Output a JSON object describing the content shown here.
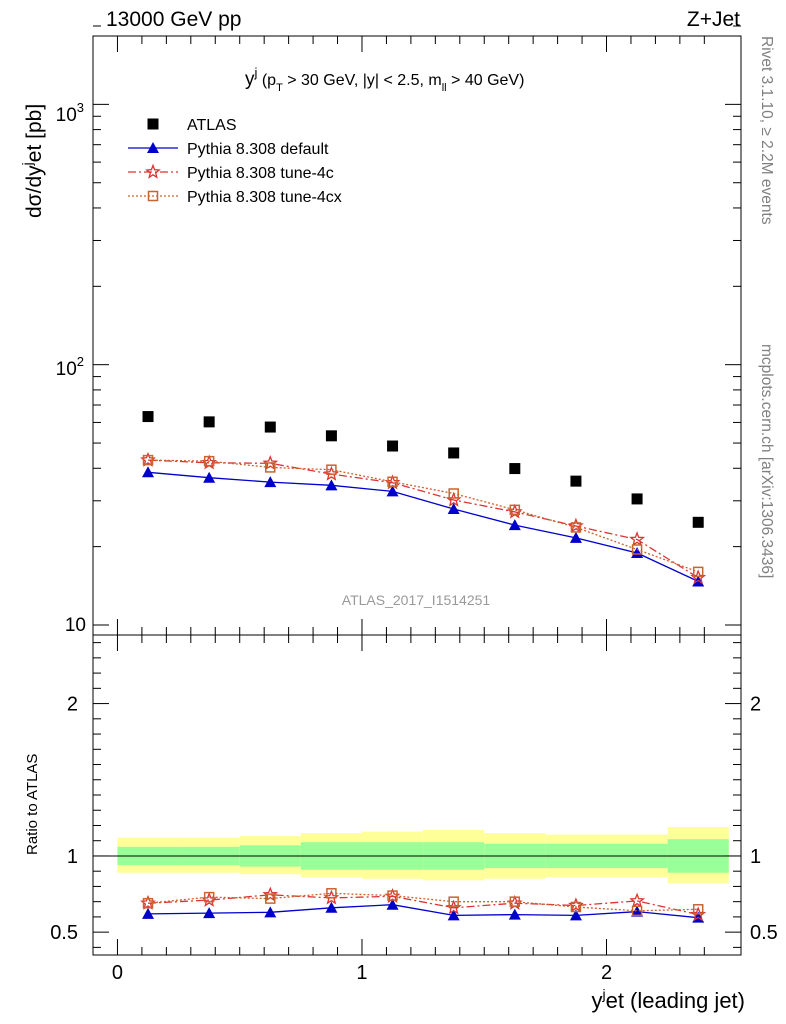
{
  "header": {
    "energy_label": "13000 GeV pp",
    "process_label": "Z+Jet"
  },
  "side_labels": {
    "rivet": "Rivet 3.1.10, ≥ 2.2M events",
    "mcplots": "mcplots.cern.ch [arXiv:1306.3436]"
  },
  "watermark": "ATLAS_2017_I1514251",
  "main_title": "y^j (p_T > 30 GeV, |y| < 2.5, m_ll > 40 GeV)",
  "colors": {
    "atlas": "#000000",
    "default": "#0000cc",
    "tune4c": "#dd3333",
    "tune4cx": "#c8642d",
    "band_inner": "#99ff99",
    "band_outer": "#ffff99"
  },
  "chart_data": [
    {
      "type": "scatter",
      "panel": "main",
      "ylabel": "dσ/dy^jet [pb]",
      "yscale": "log",
      "ylim": [
        10,
        2000
      ],
      "xlim": [
        -0.1,
        2.55
      ],
      "ytick_labels": [
        "10",
        "10²",
        "10³"
      ],
      "legend_position": "top-left",
      "x": [
        0.125,
        0.375,
        0.625,
        0.875,
        1.125,
        1.375,
        1.625,
        1.875,
        2.125,
        2.375
      ],
      "series": [
        {
          "name": "ATLAS",
          "key": "atlas",
          "marker": "square",
          "line": "none",
          "values": [
            63.2,
            60.3,
            57.6,
            53.3,
            48.7,
            45.8,
            39.9,
            35.7,
            30.5,
            24.8
          ]
        },
        {
          "name": "Pythia 8.308 default",
          "key": "default",
          "marker": "triangle",
          "line": "solid",
          "values": [
            38.6,
            36.8,
            35.4,
            34.4,
            32.6,
            27.9,
            24.2,
            21.6,
            18.9,
            14.7
          ]
        },
        {
          "name": "Pythia 8.308 tune-4c",
          "key": "tune4c",
          "marker": "star",
          "line": "dashdot",
          "values": [
            43.0,
            42.0,
            41.8,
            38.0,
            35.2,
            30.2,
            27.2,
            24.0,
            21.3,
            15.2
          ]
        },
        {
          "name": "Pythia 8.308 tune-4cx",
          "key": "tune4cx",
          "marker": "open-square",
          "line": "dotted",
          "values": [
            43.0,
            42.6,
            40.3,
            39.5,
            35.5,
            32.0,
            27.7,
            23.7,
            19.5,
            16.0
          ]
        }
      ]
    },
    {
      "type": "line",
      "panel": "ratio",
      "ylabel": "Ratio to ATLAS",
      "xlabel": "y^jet (leading jet)",
      "ylim": [
        0.35,
        2.45
      ],
      "xlim": [
        -0.1,
        2.55
      ],
      "yticks": [
        0.5,
        1,
        2
      ],
      "ytick_labels": [
        "0.5",
        "1",
        "2"
      ],
      "xticks": [
        0,
        1,
        2
      ],
      "xtick_labels": [
        "0",
        "1",
        "2"
      ],
      "bins": [
        [
          0,
          0.25
        ],
        [
          0.25,
          0.5
        ],
        [
          0.5,
          0.75
        ],
        [
          0.75,
          1.0
        ],
        [
          1.0,
          1.25
        ],
        [
          1.25,
          1.5
        ],
        [
          1.5,
          1.75
        ],
        [
          1.75,
          2.0
        ],
        [
          2.0,
          2.25
        ],
        [
          2.25,
          2.5
        ]
      ],
      "band_inner": [
        [
          0.94,
          1.06
        ],
        [
          0.94,
          1.06
        ],
        [
          0.93,
          1.07
        ],
        [
          0.91,
          1.09
        ],
        [
          0.91,
          1.09
        ],
        [
          0.91,
          1.09
        ],
        [
          0.92,
          1.08
        ],
        [
          0.92,
          1.08
        ],
        [
          0.92,
          1.08
        ],
        [
          0.89,
          1.11
        ]
      ],
      "band_outer": [
        [
          0.89,
          1.12
        ],
        [
          0.89,
          1.12
        ],
        [
          0.88,
          1.13
        ],
        [
          0.86,
          1.15
        ],
        [
          0.85,
          1.16
        ],
        [
          0.84,
          1.17
        ],
        [
          0.85,
          1.15
        ],
        [
          0.86,
          1.14
        ],
        [
          0.86,
          1.14
        ],
        [
          0.82,
          1.19
        ]
      ],
      "x": [
        0.125,
        0.375,
        0.625,
        0.875,
        1.125,
        1.375,
        1.625,
        1.875,
        2.125,
        2.375
      ],
      "series": [
        {
          "name": "Pythia 8.308 default",
          "key": "default",
          "marker": "triangle",
          "line": "solid",
          "values": [
            0.62,
            0.625,
            0.63,
            0.66,
            0.68,
            0.61,
            0.615,
            0.61,
            0.635,
            0.595
          ]
        },
        {
          "name": "Pythia 8.308 tune-4c",
          "key": "tune4c",
          "marker": "star",
          "line": "dashdot",
          "values": [
            0.69,
            0.71,
            0.745,
            0.725,
            0.735,
            0.66,
            0.69,
            0.675,
            0.705,
            0.615
          ]
        },
        {
          "name": "Pythia 8.308 tune-4cx",
          "key": "tune4cx",
          "marker": "open-square",
          "line": "dotted",
          "values": [
            0.69,
            0.73,
            0.72,
            0.755,
            0.74,
            0.7,
            0.7,
            0.665,
            0.64,
            0.65
          ]
        }
      ]
    }
  ]
}
